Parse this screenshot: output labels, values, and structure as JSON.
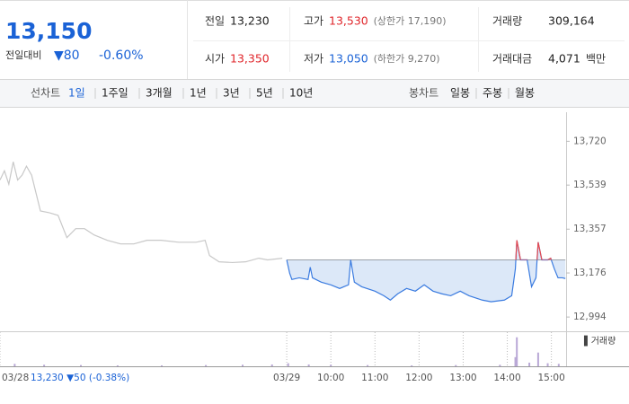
{
  "quote": {
    "price": "13,150",
    "change_label": "전일대비",
    "change": "▼80",
    "change_rate": "-0.60%"
  },
  "stats": [
    {
      "label": "전일",
      "value": "13,230",
      "color": "#222222"
    },
    {
      "label": "고가",
      "value": "13,530",
      "note": "(상한가 17,190)",
      "color": "#e0262b"
    },
    {
      "label": "거래량",
      "value": "309,164",
      "color": "#222222"
    },
    {
      "label": "시가",
      "value": "13,350",
      "color": "#e0262b"
    },
    {
      "label": "저가",
      "value": "13,050",
      "note": "(하한가 9,270)",
      "color": "#1a62d6"
    },
    {
      "label": "거래대금",
      "value": "4,071",
      "unit": "백만",
      "color": "#222222"
    }
  ],
  "tabs": {
    "line_label": "선차트",
    "line": [
      "1일",
      "1주일",
      "3개월",
      "1년",
      "3년",
      "5년",
      "10년"
    ],
    "selected": 0,
    "candle_label": "봉차트",
    "candle": [
      "일봉",
      "주봉",
      "월봉"
    ]
  },
  "chart_data": {
    "type": "line",
    "prev_day_label": "13,230 ▼50 (-0.38%)",
    "baseline": 13230,
    "xlim": [
      0,
      770
    ],
    "xticks": [
      {
        "value": 0,
        "label": "03/28"
      },
      {
        "value": 390,
        "label": "03/29"
      },
      {
        "value": 450,
        "label": "10:00"
      },
      {
        "value": 510,
        "label": "11:00"
      },
      {
        "value": 570,
        "label": "12:00"
      },
      {
        "value": 630,
        "label": "13:00"
      },
      {
        "value": 690,
        "label": "14:00"
      },
      {
        "value": 750,
        "label": "15:00"
      }
    ],
    "ylim": [
      12950,
      13840
    ],
    "yticks": [
      {
        "value": 13720,
        "label": "13,720"
      },
      {
        "value": 13539,
        "label": "13,539"
      },
      {
        "value": 13357,
        "label": "13,357"
      },
      {
        "value": 13176,
        "label": "13,176"
      },
      {
        "value": 12994,
        "label": "12,994"
      }
    ],
    "series": [
      {
        "color": "#c8c8c8",
        "x": [
          0,
          6,
          12,
          18,
          24,
          30,
          36,
          43,
          49,
          55,
          67,
          79,
          91,
          103,
          115,
          128,
          146,
          164,
          182,
          200,
          219,
          243,
          267,
          279,
          285,
          298,
          316,
          334,
          352,
          364,
          384
        ],
        "values": [
          13560,
          13598,
          13543,
          13635,
          13560,
          13580,
          13617,
          13580,
          13506,
          13432,
          13425,
          13414,
          13322,
          13359,
          13359,
          13333,
          13311,
          13296,
          13296,
          13311,
          13311,
          13303,
          13303,
          13311,
          13248,
          13222,
          13219,
          13222,
          13237,
          13230,
          13237
        ]
      },
      {
        "color": "#3a7be0",
        "above_color": "#e8494e",
        "fill": "#dce8f8",
        "x": [
          390,
          394,
          397,
          407,
          419,
          422,
          425,
          437,
          450,
          462,
          474,
          477,
          482,
          492,
          510,
          522,
          531,
          541,
          553,
          565,
          577,
          589,
          601,
          613,
          626,
          638,
          656,
          668,
          686,
          696,
          701,
          703,
          708,
          717,
          723,
          729,
          732,
          737,
          745,
          749,
          754,
          759,
          765,
          769
        ],
        "values": [
          13230,
          13175,
          13149,
          13156,
          13149,
          13200,
          13156,
          13138,
          13127,
          13112,
          13127,
          13230,
          13138,
          13119,
          13101,
          13082,
          13064,
          13090,
          13112,
          13101,
          13127,
          13101,
          13090,
          13082,
          13101,
          13082,
          13064,
          13057,
          13064,
          13082,
          13193,
          13311,
          13230,
          13230,
          13119,
          13156,
          13303,
          13230,
          13230,
          13237,
          13193,
          13156,
          13156,
          13153
        ]
      }
    ],
    "volume": {
      "label": "▌거래량",
      "color": "#b9a8d6",
      "ylim": [
        0,
        100
      ],
      "x": [
        20,
        60,
        110,
        160,
        220,
        280,
        330,
        370,
        392,
        420,
        450,
        500,
        560,
        620,
        680,
        701,
        703,
        720,
        732,
        745,
        760
      ],
      "values": [
        8,
        5,
        4,
        3,
        3,
        4,
        5,
        6,
        10,
        6,
        5,
        4,
        3,
        4,
        5,
        30,
        95,
        12,
        45,
        10,
        8
      ]
    }
  }
}
